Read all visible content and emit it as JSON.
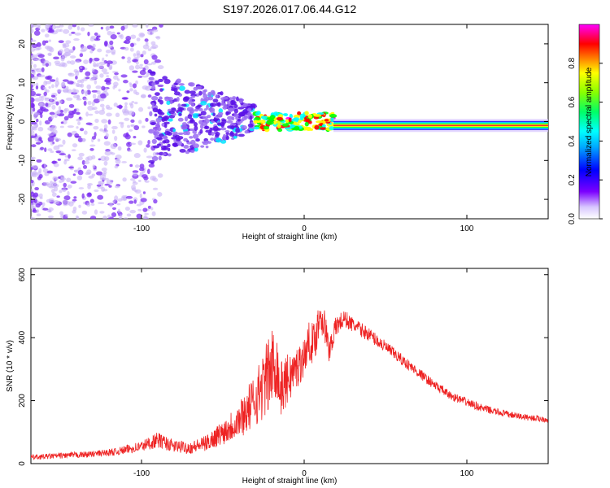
{
  "title": "S197.2026.017.06.44.G12",
  "spectrogram": {
    "type": "heatmap",
    "ylabel": "Frequency (Hz)",
    "xlabel": "Height of straight line (km)",
    "xlim": [
      -168,
      150
    ],
    "ylim": [
      -25,
      25
    ],
    "xticks": [
      -100,
      0,
      100
    ],
    "yticks": [
      -20,
      -10,
      0,
      10,
      20
    ],
    "segments": [
      {
        "region": "noise",
        "x": [
          -168,
          -92
        ],
        "freq_spread": 25
      },
      {
        "region": "scattered",
        "x": [
          -92,
          -30
        ],
        "freq_spread": 10
      },
      {
        "region": "converging",
        "x": [
          -30,
          18
        ],
        "freq_center": 0
      },
      {
        "region": "carrier",
        "x": [
          18,
          150
        ],
        "freq_center": -1
      }
    ],
    "colorbar": {
      "label": "Normalized spectral amplitude",
      "ticks": [
        0.0,
        0.2,
        0.4,
        0.6,
        0.8
      ],
      "tick_labels": [
        "0.0",
        "0.2",
        "0.4",
        "0.6",
        "0.8"
      ],
      "range": [
        0,
        1
      ],
      "colors": [
        "#ffffff",
        "#7b00ff",
        "#0000ff",
        "#00ffff",
        "#00ff00",
        "#ffff00",
        "#ff0000",
        "#ff00ff"
      ]
    }
  },
  "chart_data": {
    "type": "line",
    "title": "",
    "xlabel": "Height of straight line (km)",
    "ylabel": "SNR (10 * v/v)",
    "xlim": [
      -168,
      150
    ],
    "ylim": [
      0,
      620
    ],
    "xticks": [
      -100,
      0,
      100
    ],
    "yticks": [
      0,
      200,
      400,
      600
    ],
    "color": "#ee2222",
    "series": [
      {
        "name": "SNR",
        "x": [
          -168,
          -150,
          -130,
          -115,
          -100,
          -90,
          -80,
          -70,
          -60,
          -50,
          -40,
          -32,
          -25,
          -20,
          -17,
          -15,
          -10,
          -5,
          0,
          3,
          6,
          10,
          13,
          15,
          20,
          25,
          30,
          40,
          50,
          60,
          70,
          80,
          90,
          100,
          110,
          120,
          130,
          140,
          150
        ],
        "values": [
          20,
          25,
          30,
          38,
          55,
          75,
          55,
          50,
          65,
          100,
          140,
          190,
          250,
          300,
          330,
          230,
          270,
          300,
          340,
          390,
          380,
          480,
          430,
          360,
          440,
          460,
          440,
          410,
          370,
          330,
          290,
          250,
          215,
          195,
          175,
          162,
          152,
          145,
          140
        ],
        "noise_amplitude": [
          8,
          9,
          10,
          12,
          18,
          25,
          20,
          20,
          25,
          40,
          60,
          80,
          110,
          130,
          120,
          90,
          80,
          70,
          60,
          60,
          70,
          60,
          55,
          45,
          35,
          28,
          24,
          22,
          20,
          18,
          16,
          15,
          14,
          13,
          12,
          11,
          10,
          10,
          10
        ]
      }
    ]
  }
}
